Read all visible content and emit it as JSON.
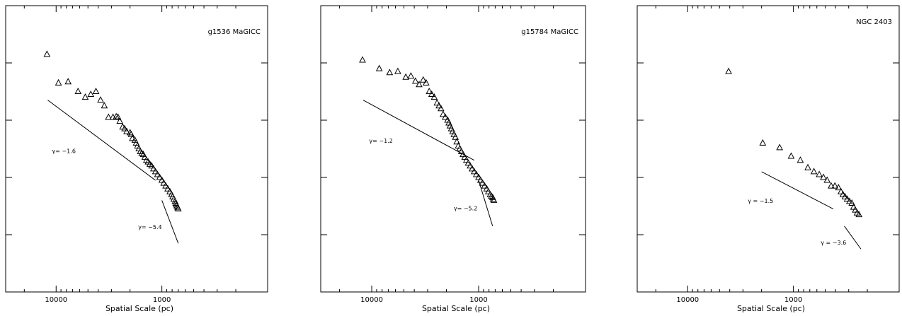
{
  "chart_data": [
    {
      "type": "scatter",
      "title": "g1536 MaGICC",
      "xlabel": "Spatial Scale (pc)",
      "ylabel": "",
      "x_scale": "log",
      "x_reversed": true,
      "xlim": [
        30000,
        100
      ],
      "ylim": [
        0,
        5
      ],
      "x_tick_labels": [
        {
          "value": 10000,
          "label": "10000"
        },
        {
          "value": 1000,
          "label": "1000"
        }
      ],
      "series": [
        {
          "marker": "triangle-open",
          "x": [
            12200,
            9500,
            7700,
            6200,
            5300,
            4700,
            4200,
            3800,
            3500,
            3200,
            2900,
            2700,
            2600,
            2500,
            2350,
            2250,
            2150,
            2000,
            1950,
            1900,
            1800,
            1750,
            1700,
            1650,
            1600,
            1550,
            1500,
            1450,
            1400,
            1350,
            1300,
            1250,
            1200,
            1150,
            1100,
            1050,
            1000,
            960,
            920,
            880,
            840,
            810,
            790,
            770,
            750,
            740,
            730,
            720,
            710,
            700
          ],
          "y": [
            4.15,
            3.65,
            3.67,
            3.5,
            3.4,
            3.45,
            3.5,
            3.35,
            3.25,
            3.05,
            3.05,
            3.06,
            3.05,
            2.98,
            2.88,
            2.85,
            2.8,
            2.78,
            2.75,
            2.68,
            2.65,
            2.6,
            2.55,
            2.5,
            2.45,
            2.42,
            2.4,
            2.35,
            2.3,
            2.27,
            2.23,
            2.2,
            2.15,
            2.1,
            2.05,
            2.0,
            1.95,
            1.9,
            1.85,
            1.8,
            1.75,
            1.7,
            1.66,
            1.62,
            1.58,
            1.55,
            1.52,
            1.5,
            1.47,
            1.45
          ]
        }
      ],
      "slope_lines": [
        {
          "label": "γ= −1.6",
          "x1": 12000,
          "y1": 3.35,
          "x2": 1150,
          "y2": 1.95
        },
        {
          "label": "γ= −5.4",
          "x1": 1000,
          "y1": 1.6,
          "x2": 700,
          "y2": 0.85
        }
      ]
    },
    {
      "type": "scatter",
      "title": "g15784 MaGICC",
      "xlabel": "Spatial Scale (pc)",
      "ylabel": "",
      "x_scale": "log",
      "x_reversed": true,
      "xlim": [
        30000,
        100
      ],
      "ylim": [
        0,
        5
      ],
      "x_tick_labels": [
        {
          "value": 10000,
          "label": "10000"
        },
        {
          "value": 1000,
          "label": "1000"
        }
      ],
      "series": [
        {
          "marker": "triangle-open",
          "x": [
            12200,
            8500,
            6800,
            5700,
            4800,
            4300,
            3900,
            3600,
            3300,
            3100,
            2900,
            2750,
            2600,
            2450,
            2350,
            2250,
            2150,
            2050,
            1950,
            1900,
            1850,
            1800,
            1750,
            1700,
            1650,
            1600,
            1550,
            1500,
            1450,
            1400,
            1350,
            1300,
            1250,
            1200,
            1150,
            1100,
            1050,
            1000,
            960,
            920,
            880,
            840,
            810,
            780,
            760,
            740,
            730,
            720
          ],
          "y": [
            4.05,
            3.9,
            3.83,
            3.85,
            3.75,
            3.77,
            3.68,
            3.62,
            3.7,
            3.65,
            3.5,
            3.45,
            3.4,
            3.3,
            3.25,
            3.2,
            3.1,
            3.05,
            3.0,
            2.95,
            2.9,
            2.85,
            2.8,
            2.75,
            2.7,
            2.62,
            2.55,
            2.5,
            2.45,
            2.4,
            2.35,
            2.3,
            2.25,
            2.2,
            2.15,
            2.1,
            2.05,
            2.0,
            1.95,
            1.9,
            1.85,
            1.8,
            1.75,
            1.7,
            1.67,
            1.65,
            1.62,
            1.6
          ]
        }
      ],
      "slope_lines": [
        {
          "label": "γ= −1.2",
          "x1": 12000,
          "y1": 3.35,
          "x2": 1100,
          "y2": 2.3
        },
        {
          "label": "γ= −5.2",
          "x1": 1000,
          "y1": 1.95,
          "x2": 740,
          "y2": 1.15
        }
      ]
    },
    {
      "type": "scatter",
      "title": "NGC 2403",
      "xlabel": "Spatial Scale (pc)",
      "ylabel": "",
      "x_scale": "log",
      "x_reversed": true,
      "xlim": [
        30000,
        100
      ],
      "ylim": [
        0,
        5
      ],
      "x_tick_labels": [
        {
          "value": 10000,
          "label": "10000"
        },
        {
          "value": 1000,
          "label": "1000"
        }
      ],
      "series": [
        {
          "marker": "triangle-open",
          "x": [
            4100,
            1950,
            1350,
            1050,
            860,
            730,
            640,
            570,
            520,
            480,
            440,
            405,
            375,
            355,
            340,
            325,
            310,
            295,
            280,
            270,
            260,
            250,
            240
          ],
          "y": [
            3.85,
            2.6,
            2.52,
            2.37,
            2.3,
            2.17,
            2.1,
            2.05,
            2.0,
            1.95,
            1.85,
            1.85,
            1.82,
            1.75,
            1.7,
            1.66,
            1.62,
            1.58,
            1.55,
            1.48,
            1.43,
            1.38,
            1.35
          ]
        }
      ],
      "slope_lines": [
        {
          "label": "γ = −1.5",
          "x1": 2000,
          "y1": 2.1,
          "x2": 420,
          "y2": 1.45
        },
        {
          "label": "γ = −3.6",
          "x1": 330,
          "y1": 1.15,
          "x2": 230,
          "y2": 0.75
        }
      ]
    }
  ]
}
